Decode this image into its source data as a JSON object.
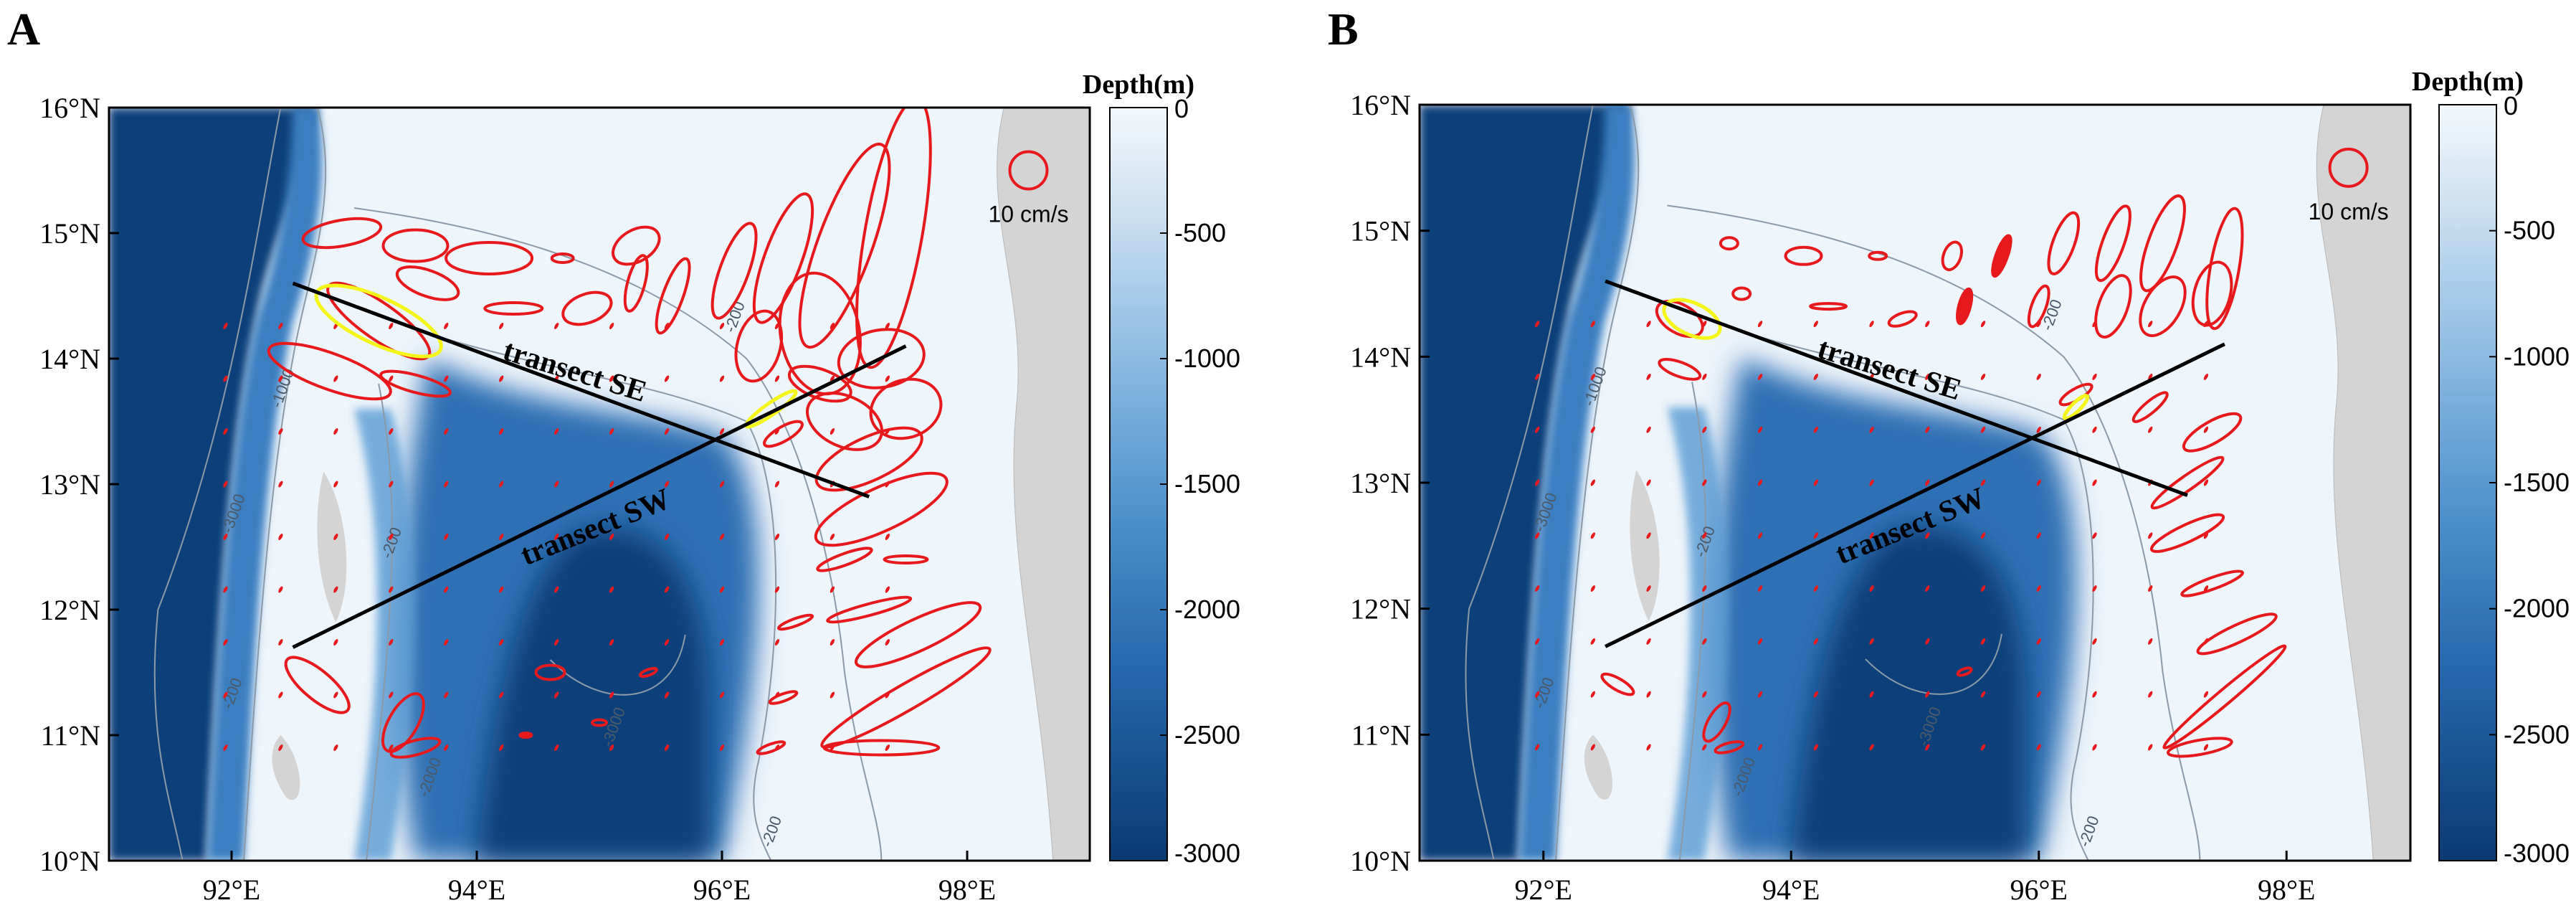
{
  "figure": {
    "panels": [
      {
        "letter": "A",
        "colorbar_title": "Depth(m)",
        "scale_label": "10 cm/s",
        "transect_labels": [
          "transect SE",
          "transect SW"
        ],
        "variant": "A"
      },
      {
        "letter": "B",
        "colorbar_title": "Depth(m)",
        "scale_label": "10 cm/s",
        "transect_labels": [
          "transect SE",
          "transect SW"
        ],
        "variant": "B"
      }
    ],
    "colorbar_ticks": [
      "0",
      "-500",
      "-1000",
      "-1500",
      "-2000",
      "-2500",
      "-3000"
    ],
    "colors": {
      "ellipse": "#e8191c",
      "highlight_ellipse": "#f5f51a",
      "land": "#d4d4d4",
      "deep": "#0f3f7a",
      "shallow": "#eef5fb",
      "transect_line": "#000000"
    }
  },
  "chart_data": [
    {
      "type": "map",
      "panel": "A",
      "x_ticks": [
        "92°E",
        "94°E",
        "96°E",
        "98°E"
      ],
      "y_ticks": [
        "10°N",
        "11°N",
        "12°N",
        "13°N",
        "14°N",
        "15°N",
        "16°N"
      ],
      "lon_range": [
        91,
        99
      ],
      "lat_range": [
        10,
        16
      ],
      "contour_labels": [
        "-200",
        "-1000",
        "-2000",
        "-3000"
      ],
      "transects": [
        {
          "name": "transect SE",
          "start": [
            92.5,
            14.6
          ],
          "end": [
            97.2,
            12.9
          ]
        },
        {
          "name": "transect SW",
          "start": [
            92.5,
            11.7
          ],
          "end": [
            97.5,
            14.1
          ]
        }
      ],
      "scale_ellipse_cm_s": 10
    },
    {
      "type": "map",
      "panel": "B",
      "x_ticks": [
        "92°E",
        "94°E",
        "96°E",
        "98°E"
      ],
      "y_ticks": [
        "10°N",
        "11°N",
        "12°N",
        "13°N",
        "14°N",
        "15°N",
        "16°N"
      ],
      "lon_range": [
        91,
        99
      ],
      "lat_range": [
        10,
        16
      ],
      "contour_labels": [
        "-200",
        "-1000",
        "-2000",
        "-3000"
      ],
      "transects": [
        {
          "name": "transect SE",
          "start": [
            92.5,
            14.6
          ],
          "end": [
            97.2,
            12.9
          ]
        },
        {
          "name": "transect SW",
          "start": [
            92.5,
            11.7
          ],
          "end": [
            97.5,
            14.1
          ]
        }
      ],
      "scale_ellipse_cm_s": 10
    }
  ]
}
